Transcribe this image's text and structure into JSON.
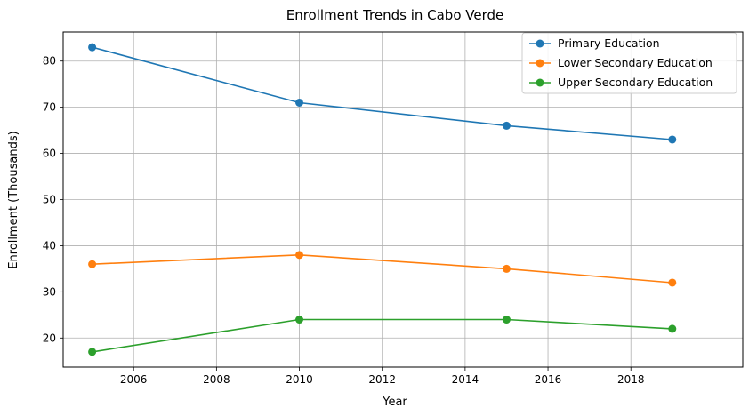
{
  "chart_data": {
    "type": "line",
    "title": "Enrollment Trends in Cabo Verde",
    "xlabel": "Year",
    "ylabel": "Enrollment (Thousands)",
    "xlim": [
      2004.3,
      2020.7
    ],
    "ylim": [
      13.7,
      86.3
    ],
    "xticks": [
      2006,
      2008,
      2010,
      2012,
      2014,
      2016,
      2018
    ],
    "yticks": [
      20,
      30,
      40,
      50,
      60,
      70,
      80
    ],
    "grid": true,
    "legend_position": "top-right",
    "x": [
      2005,
      2010,
      2015,
      2019
    ],
    "series": [
      {
        "name": "Primary Education",
        "color": "#1f77b4",
        "values": [
          83,
          71,
          66,
          63
        ]
      },
      {
        "name": "Lower Secondary Education",
        "color": "#ff7f0e",
        "values": [
          36,
          38,
          35,
          32
        ]
      },
      {
        "name": "Upper Secondary Education",
        "color": "#2ca02c",
        "values": [
          17,
          24,
          24,
          22
        ]
      }
    ]
  }
}
